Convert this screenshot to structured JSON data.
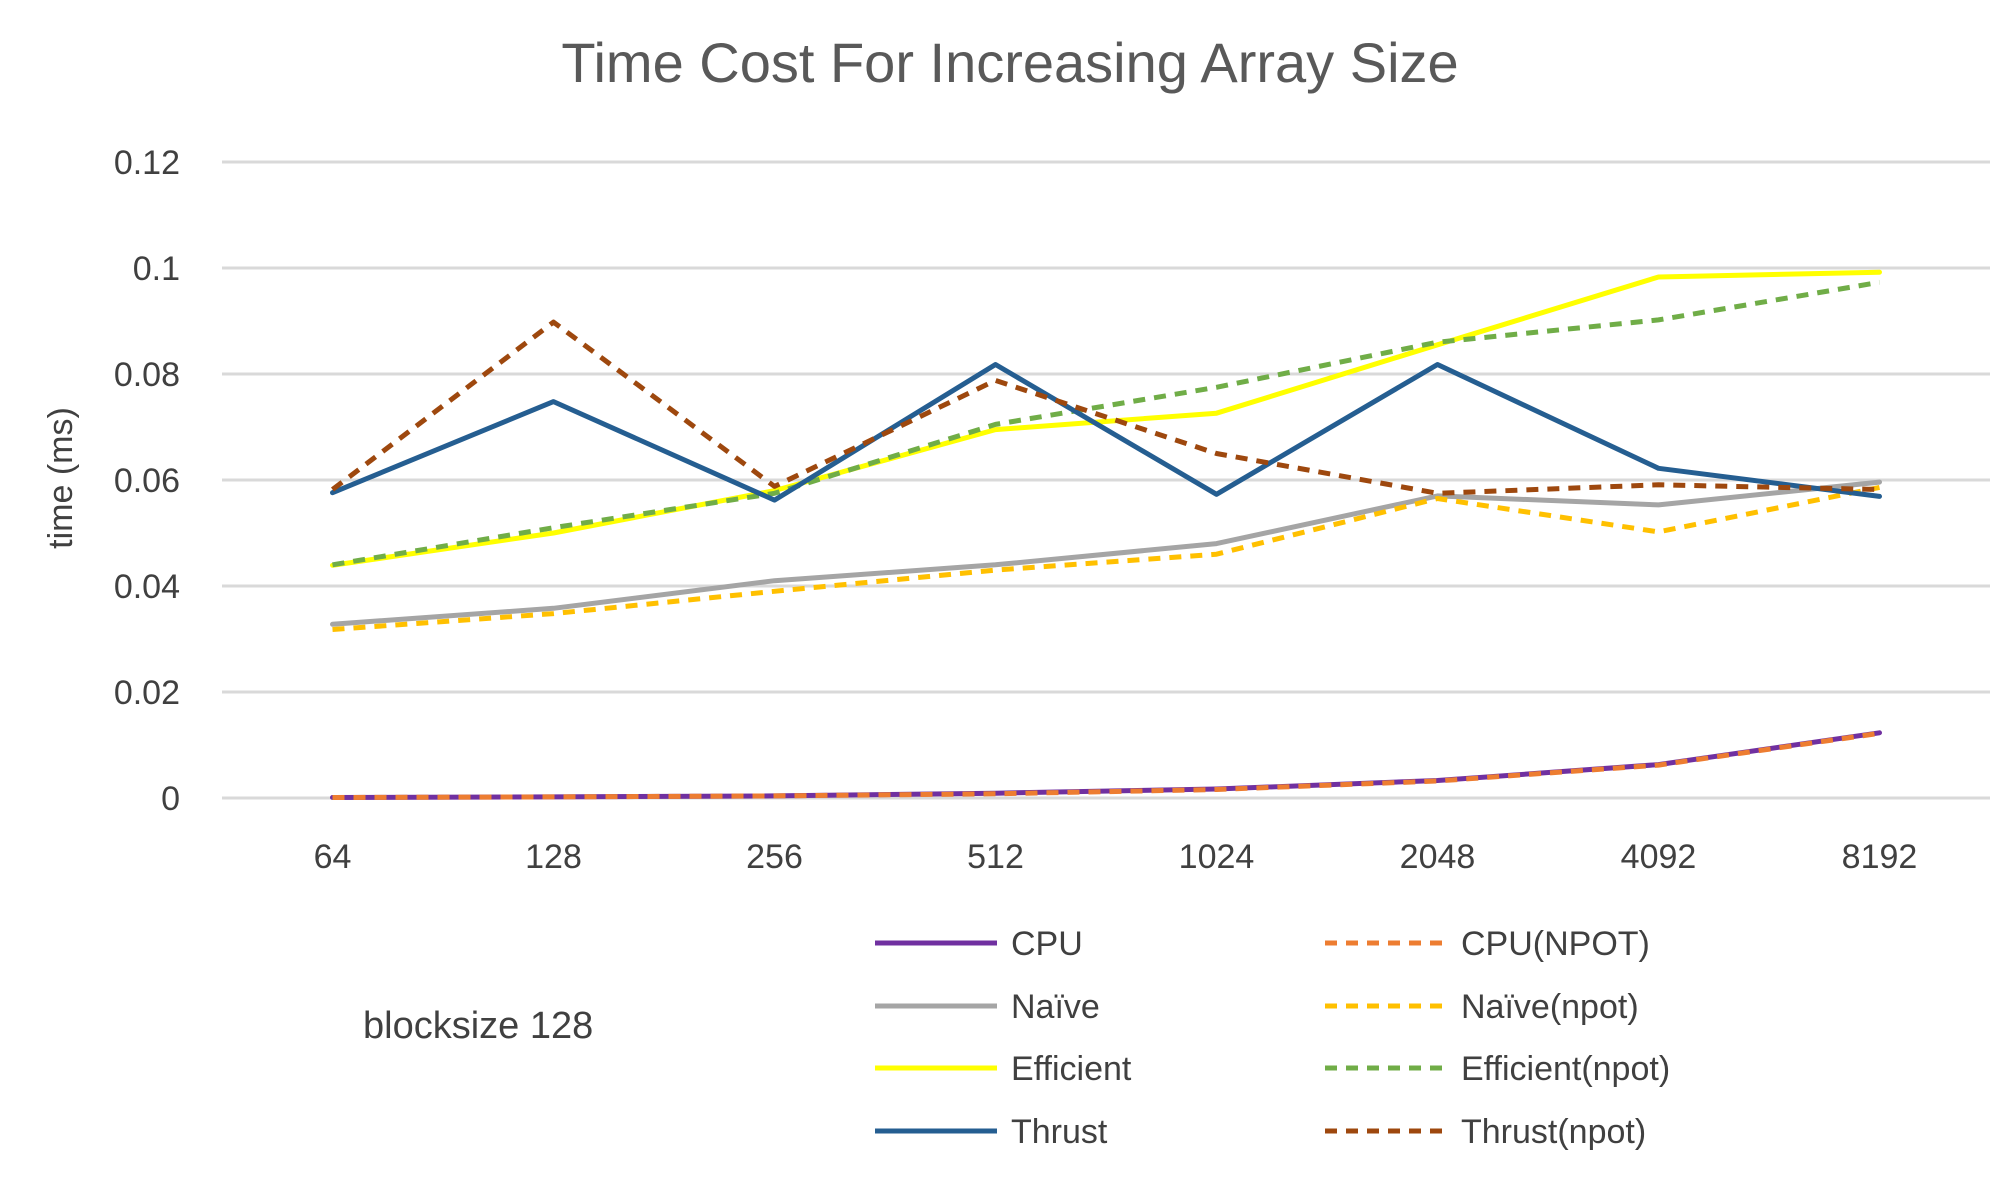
{
  "chart_data": {
    "type": "line",
    "title": "Time Cost For Increasing Array Size",
    "xlabel": "",
    "ylabel": "time (ms)",
    "categories": [
      "64",
      "128",
      "256",
      "512",
      "1024",
      "2048",
      "4092",
      "8192"
    ],
    "ylim": [
      0,
      0.12
    ],
    "yticks": [
      0,
      0.02,
      0.04,
      0.06,
      0.08,
      0.1,
      0.12
    ],
    "ytick_labels": [
      "0",
      "0.02",
      "0.04",
      "0.06",
      "0.08",
      "0.1",
      "0.12"
    ],
    "grid": true,
    "legend_position": "bottom-right",
    "annotation": "blocksize 128",
    "series": [
      {
        "name": "CPU",
        "color": "#7030a0",
        "dashed": false,
        "values": [
          0.0001,
          0.0002,
          0.0004,
          0.0009,
          0.0017,
          0.0033,
          0.0063,
          0.0123
        ]
      },
      {
        "name": "CPU(NPOT)",
        "color": "#ed7d31",
        "dashed": true,
        "values": [
          0.0001,
          0.0002,
          0.0004,
          0.0008,
          0.0016,
          0.0032,
          0.0062,
          0.0122
        ]
      },
      {
        "name": "Naïve",
        "color": "#a5a5a5",
        "dashed": false,
        "values": [
          0.0328,
          0.0358,
          0.041,
          0.044,
          0.048,
          0.057,
          0.0553,
          0.0596
        ]
      },
      {
        "name": "Naïve(npot)",
        "color": "#ffc000",
        "dashed": true,
        "values": [
          0.0318,
          0.0348,
          0.039,
          0.043,
          0.046,
          0.0565,
          0.0502,
          0.0586
        ]
      },
      {
        "name": "Efficient",
        "color": "#ffff00",
        "dashed": false,
        "values": [
          0.0439,
          0.05,
          0.058,
          0.0695,
          0.0726,
          0.0855,
          0.0983,
          0.0992
        ]
      },
      {
        "name": "Efficient(npot)",
        "color": "#70ad47",
        "dashed": true,
        "values": [
          0.044,
          0.051,
          0.0575,
          0.0705,
          0.0775,
          0.086,
          0.0902,
          0.0973
        ]
      },
      {
        "name": "Thrust",
        "color": "#255e91",
        "dashed": false,
        "values": [
          0.0576,
          0.0748,
          0.0562,
          0.0818,
          0.0573,
          0.0818,
          0.0622,
          0.0569
        ]
      },
      {
        "name": "Thrust(npot)",
        "color": "#9e480e",
        "dashed": true,
        "values": [
          0.0582,
          0.0898,
          0.0588,
          0.0788,
          0.065,
          0.0575,
          0.0591,
          0.0582
        ]
      }
    ]
  }
}
